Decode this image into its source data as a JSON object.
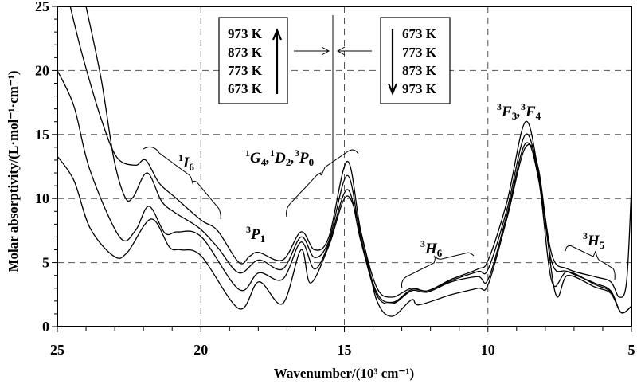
{
  "chart_data": {
    "type": "line",
    "xlabel": "Wavenumber/(10³ cm⁻¹)",
    "ylabel": "Molar absorptivity/(L·mol⁻¹·cm⁻¹)",
    "xlim": [
      25,
      5
    ],
    "ylim": [
      0,
      25
    ],
    "xticks": [
      "25",
      "20",
      "15",
      "10",
      "5"
    ],
    "yticks": [
      "0",
      "5",
      "10",
      "15",
      "20",
      "25"
    ],
    "grid": "dashed at major ticks",
    "series": [
      {
        "name": "973 K",
        "points": [
          [
            24.55,
            25
          ],
          [
            24.14,
            21.3
          ],
          [
            23.47,
            16.2
          ],
          [
            22.92,
            13.2
          ],
          [
            22.28,
            12.6
          ],
          [
            21.92,
            13.0
          ],
          [
            21.45,
            11.2
          ],
          [
            20.9,
            10.1
          ],
          [
            19.98,
            8.3
          ],
          [
            19.42,
            7.5
          ],
          [
            18.67,
            5.0
          ],
          [
            18.3,
            5.5
          ],
          [
            17.98,
            5.8
          ],
          [
            17.15,
            5.2
          ],
          [
            16.51,
            7.4
          ],
          [
            16.04,
            6.0
          ],
          [
            15.54,
            7.0
          ],
          [
            14.9,
            12.9
          ],
          [
            14.43,
            7.5
          ],
          [
            13.88,
            3.1
          ],
          [
            13.35,
            2.3
          ],
          [
            12.66,
            3.0
          ],
          [
            12.1,
            2.8
          ],
          [
            11.27,
            3.7
          ],
          [
            10.35,
            4.5
          ],
          [
            9.99,
            5.2
          ],
          [
            9.33,
            9.8
          ],
          [
            8.69,
            16.0
          ],
          [
            8.22,
            11.8
          ],
          [
            7.77,
            5.6
          ],
          [
            7.22,
            4.5
          ],
          [
            6.28,
            3.9
          ],
          [
            5.72,
            3.5
          ],
          [
            5.42,
            2.3
          ],
          [
            5.17,
            3.5
          ],
          [
            5.0,
            10.8
          ]
        ]
      },
      {
        "name": "873 K",
        "points": [
          [
            24.0,
            25
          ],
          [
            23.47,
            19.3
          ],
          [
            23.03,
            13.1
          ],
          [
            22.64,
            10.1
          ],
          [
            22.36,
            10.1
          ],
          [
            21.87,
            12.0
          ],
          [
            21.37,
            9.8
          ],
          [
            20.9,
            8.9
          ],
          [
            20.06,
            7.7
          ],
          [
            19.42,
            6.2
          ],
          [
            18.67,
            4.2
          ],
          [
            17.98,
            5.2
          ],
          [
            17.15,
            4.5
          ],
          [
            16.51,
            7.0
          ],
          [
            16.04,
            5.4
          ],
          [
            15.54,
            6.7
          ],
          [
            14.9,
            11.8
          ],
          [
            14.43,
            7.0
          ],
          [
            13.88,
            2.7
          ],
          [
            13.32,
            1.9
          ],
          [
            12.66,
            2.9
          ],
          [
            12.1,
            2.8
          ],
          [
            11.27,
            3.6
          ],
          [
            10.35,
            4.3
          ],
          [
            9.99,
            4.5
          ],
          [
            9.33,
            9.2
          ],
          [
            8.69,
            15.0
          ],
          [
            8.22,
            11.5
          ],
          [
            7.77,
            5.0
          ],
          [
            7.22,
            4.3
          ],
          [
            6.28,
            3.4
          ],
          [
            5.72,
            2.8
          ],
          [
            5.36,
            1.1
          ],
          [
            5.0,
            1.6
          ]
        ]
      },
      {
        "name": "773 K",
        "points": [
          [
            25,
            20.0
          ],
          [
            24.42,
            17.2
          ],
          [
            23.86,
            12.2
          ],
          [
            22.83,
            7.0
          ],
          [
            22.28,
            7.5
          ],
          [
            21.81,
            9.4
          ],
          [
            21.25,
            7.3
          ],
          [
            20.81,
            7.4
          ],
          [
            19.98,
            7.0
          ],
          [
            18.67,
            2.9
          ],
          [
            17.98,
            4.2
          ],
          [
            17.15,
            3.7
          ],
          [
            16.51,
            6.6
          ],
          [
            16.04,
            4.5
          ],
          [
            15.54,
            6.5
          ],
          [
            14.9,
            10.7
          ],
          [
            14.43,
            6.7
          ],
          [
            13.88,
            2.5
          ],
          [
            13.32,
            1.8
          ],
          [
            12.66,
            2.8
          ],
          [
            12.1,
            2.7
          ],
          [
            11.27,
            3.5
          ],
          [
            10.35,
            3.9
          ],
          [
            9.99,
            3.7
          ],
          [
            9.33,
            8.8
          ],
          [
            8.69,
            14.3
          ],
          [
            8.22,
            11.3
          ],
          [
            7.77,
            3.5
          ],
          [
            7.22,
            4.3
          ],
          [
            6.28,
            3.3
          ],
          [
            5.72,
            2.7
          ],
          [
            5.36,
            1.1
          ],
          [
            5.0,
            1.6
          ]
        ]
      },
      {
        "name": "673 K",
        "points": [
          [
            25,
            13.3
          ],
          [
            24.42,
            11.4
          ],
          [
            23.86,
            7.7
          ],
          [
            23.03,
            5.5
          ],
          [
            22.56,
            5.8
          ],
          [
            21.73,
            8.4
          ],
          [
            21.09,
            6.2
          ],
          [
            20.7,
            6.0
          ],
          [
            19.98,
            5.5
          ],
          [
            18.67,
            1.4
          ],
          [
            17.98,
            3.5
          ],
          [
            17.15,
            1.8
          ],
          [
            16.51,
            6.0
          ],
          [
            16.18,
            3.4
          ],
          [
            15.54,
            6.3
          ],
          [
            14.9,
            10.2
          ],
          [
            14.32,
            6.4
          ],
          [
            13.88,
            2.1
          ],
          [
            13.35,
            0.8
          ],
          [
            12.66,
            2.1
          ],
          [
            12.4,
            1.7
          ],
          [
            11.27,
            2.5
          ],
          [
            10.35,
            3.0
          ],
          [
            9.99,
            3.3
          ],
          [
            9.33,
            8.5
          ],
          [
            8.69,
            14.0
          ],
          [
            8.22,
            12.1
          ],
          [
            7.66,
            2.7
          ],
          [
            7.22,
            4.0
          ],
          [
            6.28,
            3.1
          ],
          [
            5.72,
            2.6
          ],
          [
            5.36,
            1.1
          ],
          [
            5.0,
            1.6
          ]
        ]
      }
    ],
    "legend": {
      "heating": [
        "973 K",
        "873 K",
        "773 K",
        "673 K"
      ],
      "cooling": [
        "673 K",
        "773 K",
        "873 K",
        "973 K"
      ]
    },
    "annotations": {
      "i6": {
        "sup": "1",
        "letter": "I",
        "sub": "6"
      },
      "p1": {
        "sup": "3",
        "letter": "P",
        "sub": "1"
      },
      "gdp": [
        {
          "sup": "1",
          "letter": "G",
          "sub": "4"
        },
        {
          "sup": "1",
          "letter": "D",
          "sub": "2"
        },
        {
          "sup": "3",
          "letter": "P",
          "sub": "0"
        }
      ],
      "h6": {
        "sup": "3",
        "letter": "H",
        "sub": "6"
      },
      "ff": [
        {
          "sup": "3",
          "letter": "F",
          "sub": "3"
        },
        {
          "sup": "3",
          "letter": "F",
          "sub": "4"
        }
      ],
      "h5": {
        "sup": "3",
        "letter": "H",
        "sub": "5"
      }
    }
  }
}
